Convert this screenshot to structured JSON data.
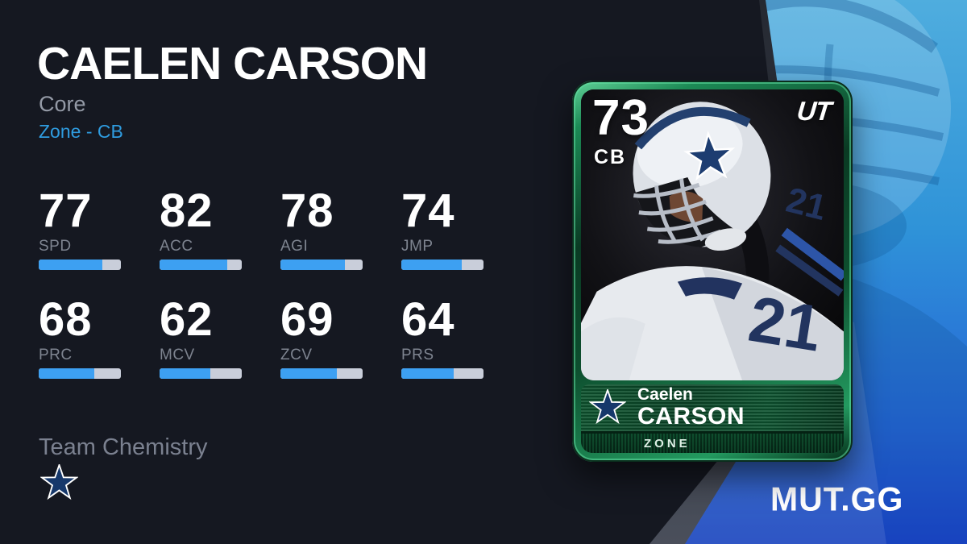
{
  "header": {
    "player_name": "CAELEN CARSON",
    "program": "Core",
    "archetype_position": "Zone - CB"
  },
  "stats": {
    "items": [
      {
        "label": "SPD",
        "value": 77
      },
      {
        "label": "ACC",
        "value": 82
      },
      {
        "label": "AGI",
        "value": 78
      },
      {
        "label": "JMP",
        "value": 74
      },
      {
        "label": "PRC",
        "value": 68
      },
      {
        "label": "MCV",
        "value": 62
      },
      {
        "label": "ZCV",
        "value": 69
      },
      {
        "label": "PRS",
        "value": 64
      }
    ]
  },
  "chemistry": {
    "title": "Team Chemistry",
    "team_icon": "dallas-cowboys-star-icon"
  },
  "card": {
    "overall": "73",
    "position": "CB",
    "brand": "UT",
    "first_name": "Caelen",
    "last_name": "CARSON",
    "archetype": "ZONE",
    "jersey_number": "21",
    "team_icon": "dallas-cowboys-star-icon"
  },
  "footer": {
    "site_logo": "MUT.GG"
  },
  "colors": {
    "background_dark": "#151821",
    "accent_blue": "#2f9ce0",
    "bar_fill": "#3da0f2",
    "bar_track": "#c9ceda",
    "card_green": "#0d4e2e",
    "panel_blue_top": "#4fadde",
    "panel_blue_bottom": "#1b40cd",
    "cowboys_navy": "#16386b"
  }
}
